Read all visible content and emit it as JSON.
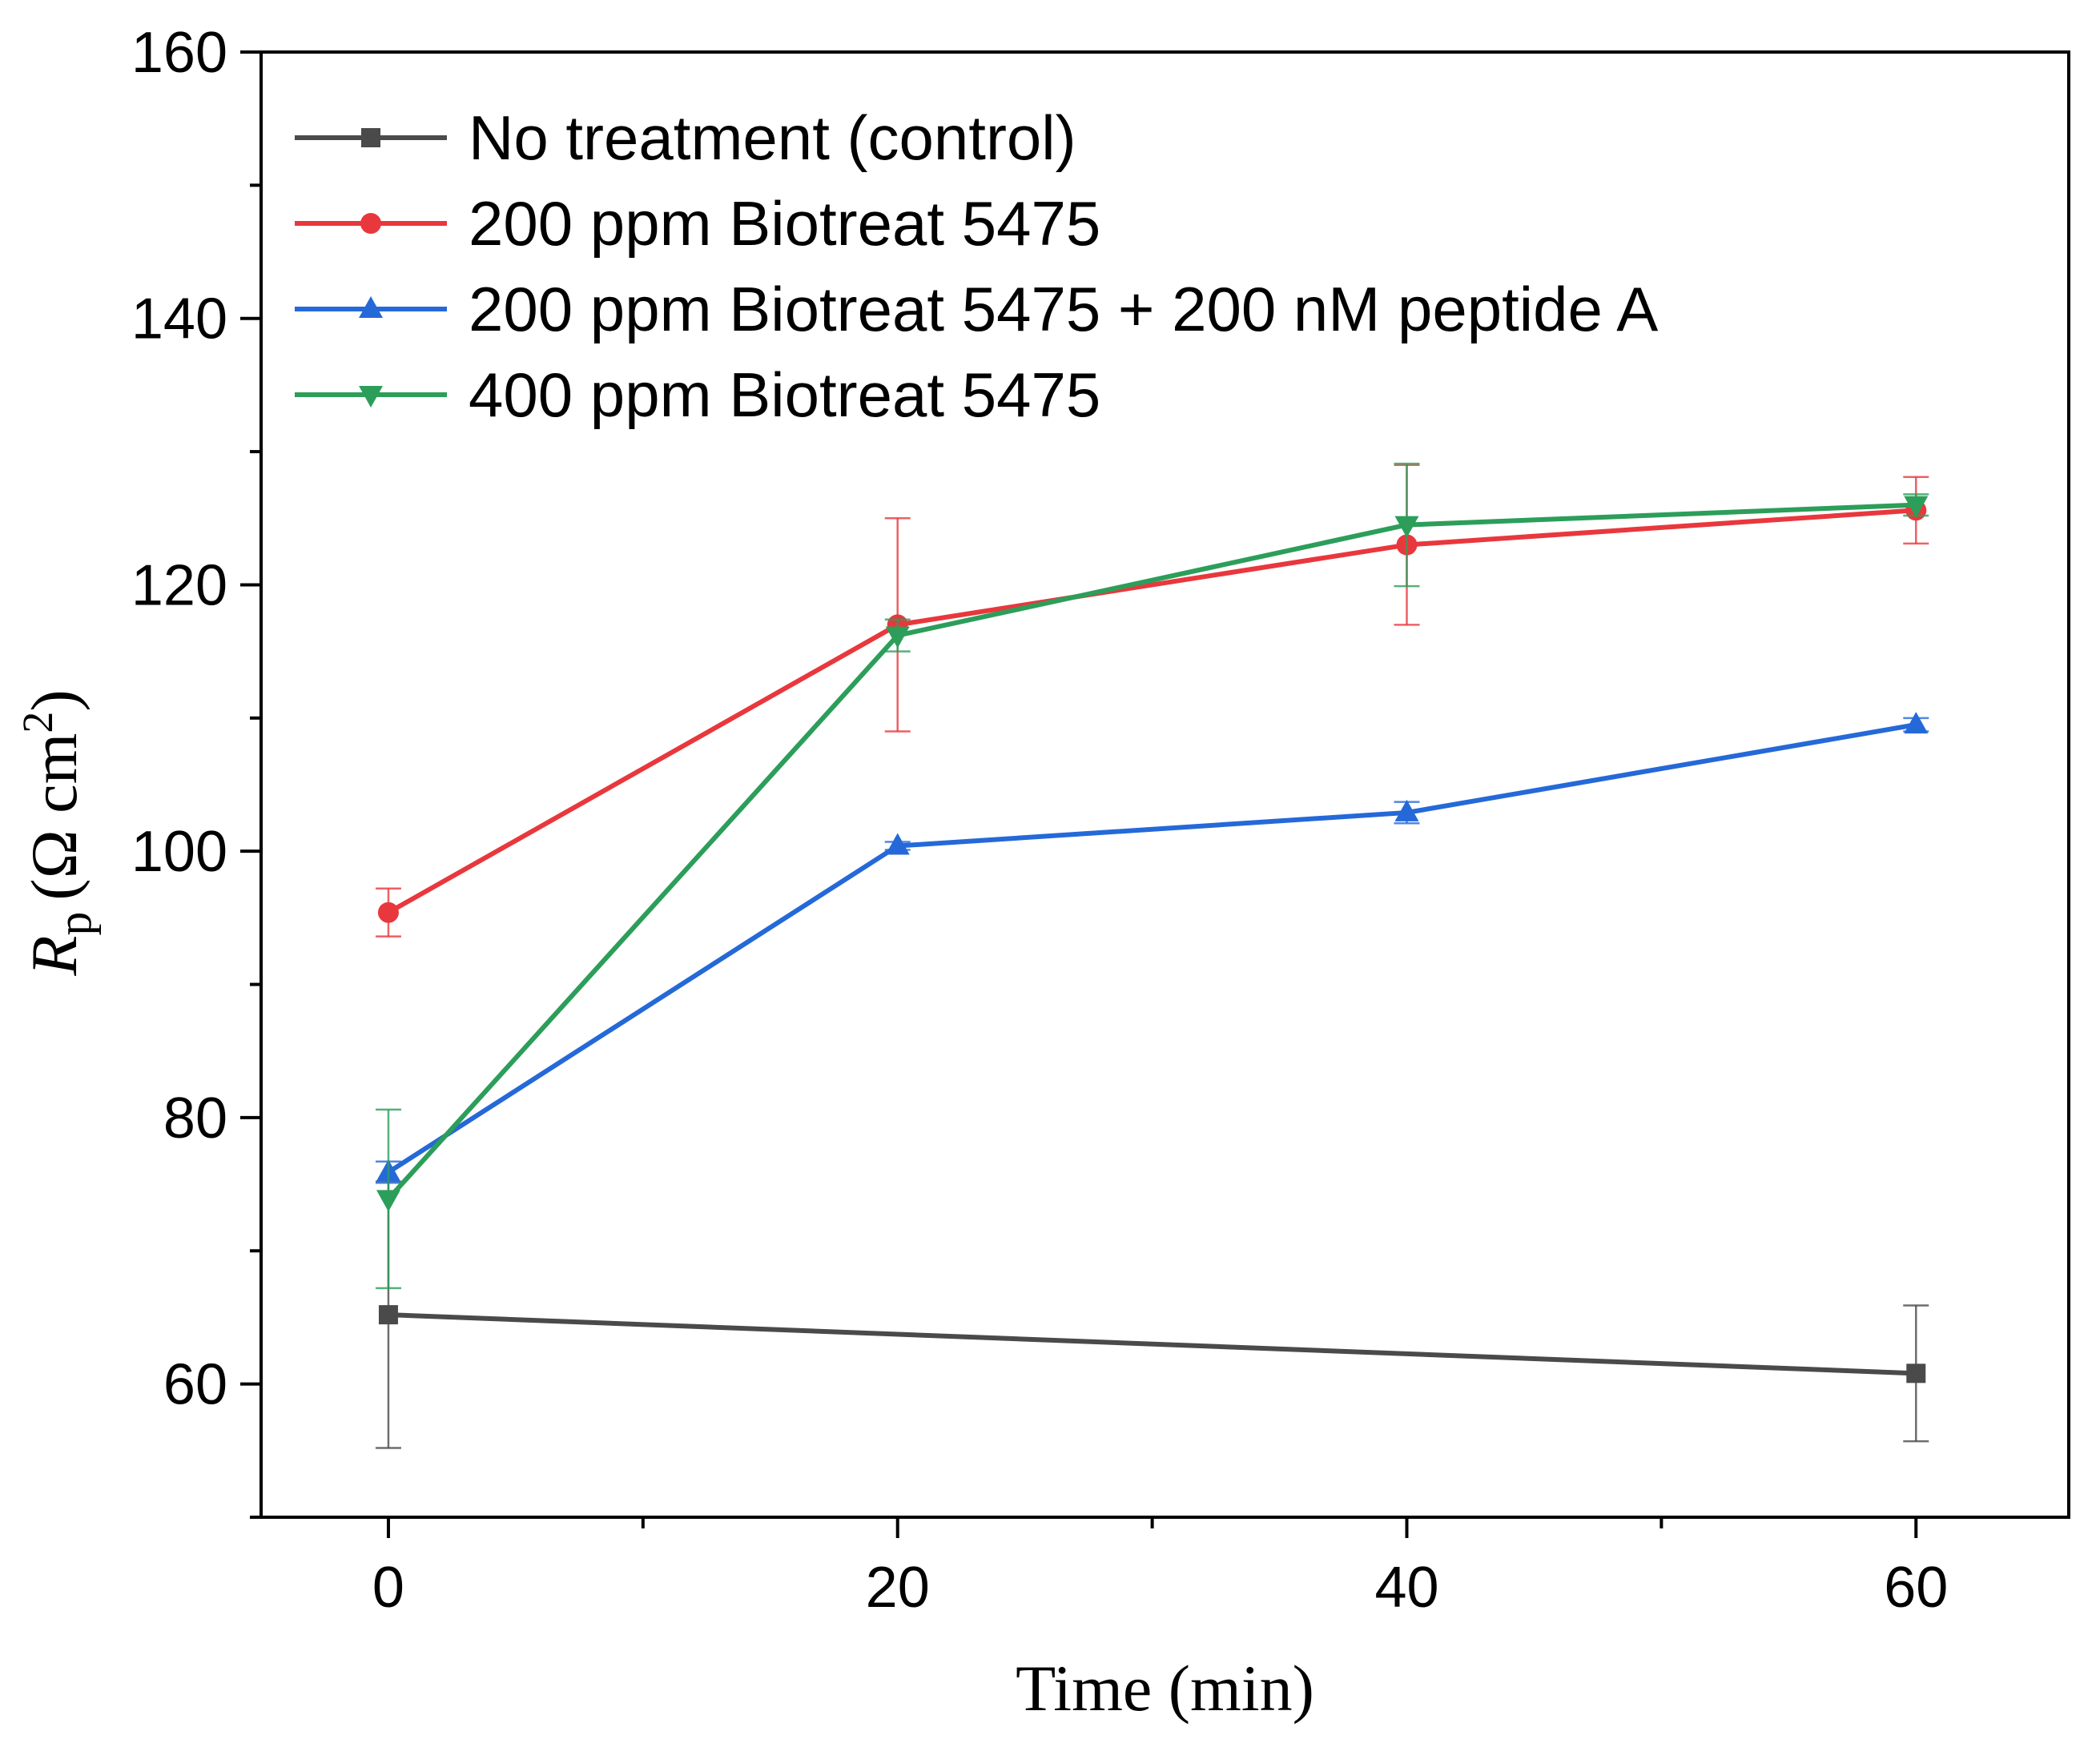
{
  "chart_data": {
    "type": "line",
    "title": "",
    "xlabel": "Time (min)",
    "ylabel": {
      "symbol": "R",
      "subscript": "p",
      "unit_prefix": "(Ω cm",
      "unit_sup": "2",
      "unit_suffix": ")"
    },
    "xlim": [
      -5,
      66
    ],
    "ylim": [
      50,
      160
    ],
    "xticks": [
      0,
      20,
      40,
      60
    ],
    "yticks": [
      60,
      80,
      100,
      120,
      140,
      160
    ],
    "legend_position": "top-left",
    "series": [
      {
        "name": "No treatment (control)",
        "color": "#4a4a4a",
        "marker": "square",
        "x": [
          0,
          60
        ],
        "y": [
          65.2,
          60.8
        ],
        "err": [
          10.0,
          5.1
        ]
      },
      {
        "name": "200 ppm Biotreat 5475",
        "color": "#e8383d",
        "marker": "circle",
        "x": [
          0,
          20,
          40,
          60
        ],
        "y": [
          95.4,
          117.0,
          123.0,
          125.6
        ],
        "err": [
          1.8,
          8.0,
          6.0,
          2.5
        ]
      },
      {
        "name": "200 ppm Biotreat 5475 + 200 nM peptide A",
        "color": "#2569d8",
        "marker": "triangle-up",
        "x": [
          0,
          20,
          40,
          60
        ],
        "y": [
          75.9,
          100.4,
          102.9,
          109.5
        ],
        "err": [
          0.8,
          0.3,
          0.8,
          0.5
        ]
      },
      {
        "name": "400 ppm Biotreat 5475",
        "color": "#2c9e5a",
        "marker": "triangle-down",
        "x": [
          0,
          20,
          40,
          60
        ],
        "y": [
          73.9,
          116.2,
          124.5,
          126.0
        ],
        "err": [
          6.7,
          1.2,
          4.6,
          0.8
        ]
      }
    ]
  }
}
